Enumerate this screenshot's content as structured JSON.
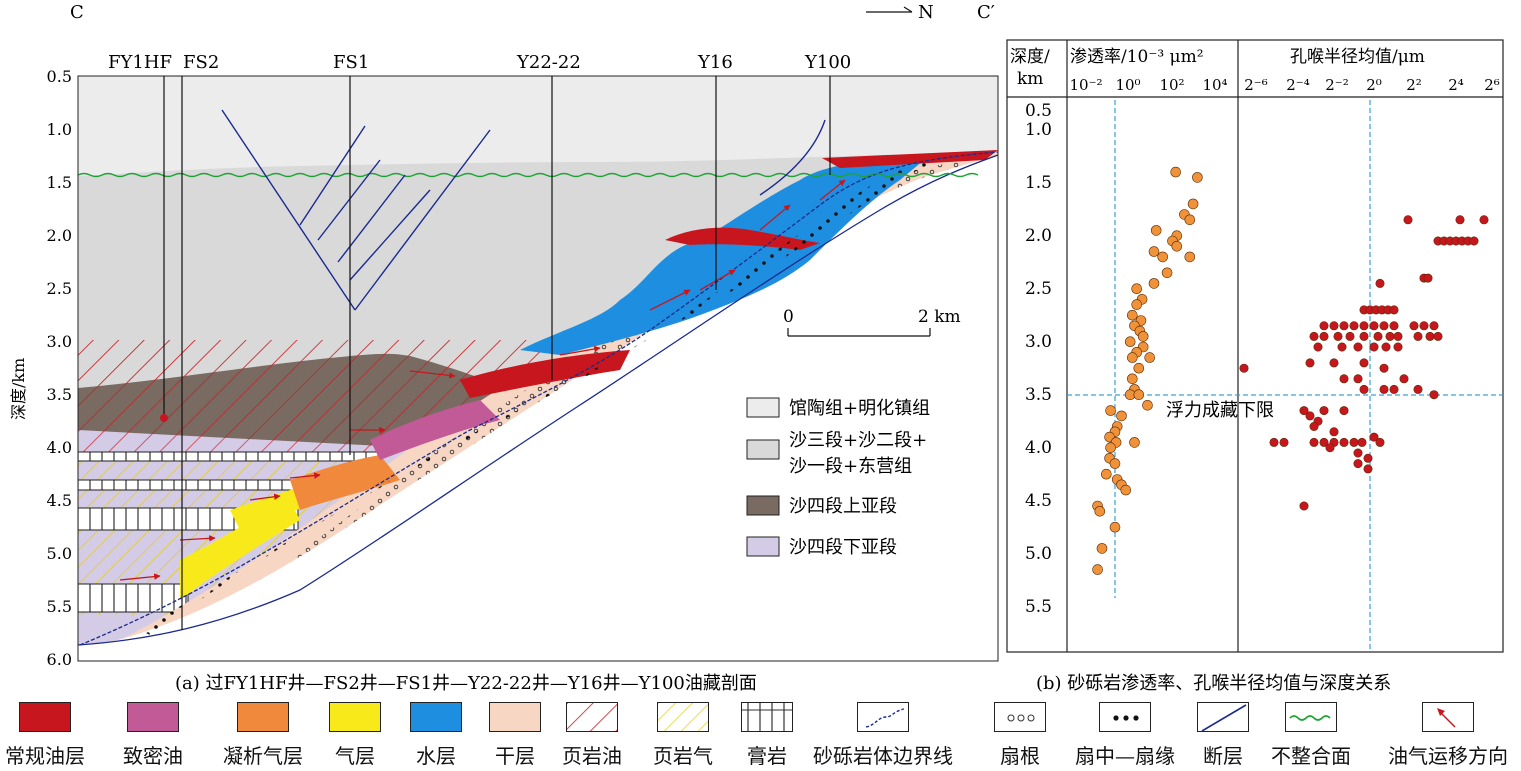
{
  "panel_a": {
    "corner_left": "C",
    "corner_right": "C′",
    "north": "N",
    "wells": [
      "FY1HF",
      "FS2",
      "FS1",
      "Y22-22",
      "Y16",
      "Y100"
    ],
    "ylabel": "深度/km",
    "yticks": [
      "0.5",
      "1.0",
      "1.5",
      "2.0",
      "2.5",
      "3.0",
      "3.5",
      "4.0",
      "4.5",
      "5.0",
      "5.5",
      "6.0"
    ],
    "scale_start": "0",
    "scale_end": "2 km",
    "legend": [
      {
        "label": "馆陶组+明化镇组",
        "color": "#ececec"
      },
      {
        "label_line1": "沙三段+沙二段+",
        "label_line2": "沙一段+东营组",
        "color": "#d9d9d9"
      },
      {
        "label": "沙四段上亚段",
        "color": "#7a6b62"
      },
      {
        "label": "沙四段下亚段",
        "color": "#d4cbe6"
      }
    ],
    "caption": "(a) 过FY1HF井—FS2井—FS1井—Y22-22井—Y16井—Y100油藏剖面"
  },
  "panel_b": {
    "depth_header_line1": "深度/",
    "depth_header_line2": "km",
    "perm_header": "渗透率/10⁻³ μm²",
    "pore_header": "孔喉半径均值/μm",
    "perm_ticks": [
      "10⁻²",
      "10⁰",
      "10²",
      "10⁴"
    ],
    "pore_ticks": [
      "2⁻⁶",
      "2⁻⁴",
      "2⁻²",
      "2⁰",
      "2²",
      "2⁴",
      "2⁶"
    ],
    "depth_ticks": [
      "0.5",
      "1.0",
      "1.5",
      "2.0",
      "2.5",
      "3.0",
      "3.5",
      "4.0",
      "4.5",
      "5.0",
      "5.5"
    ],
    "buoyancy_label": "浮力成藏下限",
    "caption": "(b) 砂砾岩渗透率、孔喉半径均值与深度关系"
  },
  "chart_data": {
    "type": "scatter",
    "ylabel": "深度/km",
    "ylim": [
      0.4,
      6.0
    ],
    "buoyancy_depth_km": 3.5,
    "series": [
      {
        "name": "渗透率/10⁻³ μm²",
        "color": "#f0923a",
        "x_scale": "log10",
        "xlim_log10": [
          -3,
          5
        ],
        "points": [
          [
            2.2,
            1.35
          ],
          [
            3.2,
            1.4
          ],
          [
            3.0,
            1.65
          ],
          [
            2.6,
            1.75
          ],
          [
            2.85,
            1.8
          ],
          [
            1.3,
            1.9
          ],
          [
            2.25,
            1.95
          ],
          [
            2.05,
            2.0
          ],
          [
            2.25,
            2.05
          ],
          [
            1.2,
            2.1
          ],
          [
            1.6,
            2.15
          ],
          [
            2.85,
            2.15
          ],
          [
            1.8,
            2.3
          ],
          [
            1.2,
            2.4
          ],
          [
            0.4,
            2.45
          ],
          [
            0.65,
            2.55
          ],
          [
            0.4,
            2.6
          ],
          [
            0.2,
            2.7
          ],
          [
            0.6,
            2.75
          ],
          [
            0.3,
            2.8
          ],
          [
            0.55,
            2.85
          ],
          [
            0.7,
            2.9
          ],
          [
            0.1,
            2.95
          ],
          [
            0.7,
            3.0
          ],
          [
            0.4,
            3.05
          ],
          [
            0.2,
            3.1
          ],
          [
            1.0,
            3.1
          ],
          [
            0.5,
            3.2
          ],
          [
            0.2,
            3.3
          ],
          [
            0.3,
            3.4
          ],
          [
            0.1,
            3.45
          ],
          [
            0.5,
            3.45
          ],
          [
            0.9,
            3.55
          ],
          [
            -0.8,
            3.6
          ],
          [
            -0.3,
            3.65
          ],
          [
            -0.5,
            3.75
          ],
          [
            -0.6,
            3.8
          ],
          [
            -0.85,
            3.85
          ],
          [
            -0.55,
            3.9
          ],
          [
            0.3,
            3.9
          ],
          [
            -0.8,
            3.95
          ],
          [
            -0.85,
            4.05
          ],
          [
            -0.6,
            4.1
          ],
          [
            -1.0,
            4.2
          ],
          [
            -0.5,
            4.25
          ],
          [
            -0.3,
            4.3
          ],
          [
            -0.1,
            4.35
          ],
          [
            -1.4,
            4.5
          ],
          [
            -1.3,
            4.55
          ],
          [
            -0.6,
            4.7
          ],
          [
            -1.2,
            4.9
          ],
          [
            -1.4,
            5.1
          ]
        ]
      },
      {
        "name": "孔喉半径均值/μm",
        "color": "#c8161e",
        "x_scale": "log2",
        "xlim_log2": [
          -7,
          7
        ],
        "points": [
          [
            1.7,
            1.8
          ],
          [
            4.3,
            1.8
          ],
          [
            5.5,
            1.8
          ],
          [
            3.2,
            2.0
          ],
          [
            3.5,
            2.0
          ],
          [
            3.8,
            2.0
          ],
          [
            4.1,
            2.0
          ],
          [
            4.4,
            2.0
          ],
          [
            4.7,
            2.0
          ],
          [
            5.0,
            2.0
          ],
          [
            2.5,
            2.35
          ],
          [
            2.7,
            2.35
          ],
          [
            0.3,
            2.4
          ],
          [
            -0.5,
            2.65
          ],
          [
            -0.2,
            2.65
          ],
          [
            0.1,
            2.65
          ],
          [
            0.4,
            2.65
          ],
          [
            0.7,
            2.65
          ],
          [
            1.0,
            2.65
          ],
          [
            -2.5,
            2.8
          ],
          [
            -2.0,
            2.8
          ],
          [
            -1.5,
            2.8
          ],
          [
            -1.0,
            2.8
          ],
          [
            -0.5,
            2.8
          ],
          [
            0.0,
            2.8
          ],
          [
            0.5,
            2.8
          ],
          [
            1.0,
            2.8
          ],
          [
            2.0,
            2.8
          ],
          [
            2.5,
            2.8
          ],
          [
            3.0,
            2.8
          ],
          [
            -3.0,
            2.9
          ],
          [
            -2.5,
            2.9
          ],
          [
            -1.8,
            2.9
          ],
          [
            -1.2,
            2.9
          ],
          [
            -0.5,
            2.9
          ],
          [
            0.2,
            2.9
          ],
          [
            0.8,
            2.9
          ],
          [
            1.2,
            2.9
          ],
          [
            2.2,
            2.9
          ],
          [
            2.8,
            2.9
          ],
          [
            3.2,
            2.9
          ],
          [
            -2.8,
            3.0
          ],
          [
            -1.6,
            3.0
          ],
          [
            -0.8,
            3.0
          ],
          [
            0.0,
            3.0
          ],
          [
            0.6,
            3.0
          ],
          [
            1.2,
            3.0
          ],
          [
            -3.2,
            3.15
          ],
          [
            -2.0,
            3.15
          ],
          [
            -0.5,
            3.15
          ],
          [
            0.5,
            3.2
          ],
          [
            -1.5,
            3.3
          ],
          [
            -0.8,
            3.3
          ],
          [
            1.5,
            3.3
          ],
          [
            -6.5,
            3.2
          ],
          [
            -0.5,
            3.4
          ],
          [
            0.5,
            3.4
          ],
          [
            1.0,
            3.4
          ],
          [
            2.2,
            3.4
          ],
          [
            3.0,
            3.45
          ],
          [
            -3.5,
            3.6
          ],
          [
            -2.5,
            3.6
          ],
          [
            -1.5,
            3.6
          ],
          [
            -3.2,
            3.65
          ],
          [
            -2.8,
            3.7
          ],
          [
            -3.0,
            3.75
          ],
          [
            -2.0,
            3.8
          ],
          [
            -5.0,
            3.9
          ],
          [
            -4.5,
            3.9
          ],
          [
            -3.0,
            3.9
          ],
          [
            -2.5,
            3.9
          ],
          [
            -2.0,
            3.9
          ],
          [
            -1.5,
            3.9
          ],
          [
            -1.0,
            3.9
          ],
          [
            -0.6,
            3.9
          ],
          [
            0.0,
            3.85
          ],
          [
            0.3,
            3.9
          ],
          [
            -2.2,
            3.95
          ],
          [
            -0.8,
            4.0
          ],
          [
            -0.3,
            4.05
          ],
          [
            -0.8,
            4.1
          ],
          [
            -0.3,
            4.15
          ],
          [
            -3.5,
            4.5
          ]
        ]
      }
    ]
  },
  "legend": [
    {
      "label": "常规油层",
      "icon": "solid-red-swatch",
      "color": "#c8161e"
    },
    {
      "label": "致密油",
      "icon": "solid-magenta-swatch",
      "color": "#c25a98"
    },
    {
      "label": "凝析气层",
      "icon": "solid-orange-swatch",
      "color": "#f0893c"
    },
    {
      "label": "气层",
      "icon": "solid-yellow-swatch",
      "color": "#f8ea1a"
    },
    {
      "label": "水层",
      "icon": "solid-blue-swatch",
      "color": "#1e8fe0"
    },
    {
      "label": "干层",
      "icon": "solid-peach-swatch",
      "color": "#f7d6c4"
    },
    {
      "label": "页岩油",
      "icon": "red-hatch-swatch",
      "color": "#c8161e"
    },
    {
      "label": "页岩气",
      "icon": "yellow-hatch-swatch",
      "color": "#e6d000"
    },
    {
      "label": "膏岩",
      "icon": "gypsum-swatch",
      "color": "#333333"
    },
    {
      "label": "砂砾岩体边界线",
      "icon": "boundary-line-swatch",
      "color": "#1a2a8f"
    },
    {
      "label": "扇根",
      "icon": "circles-swatch",
      "color": "#333333"
    },
    {
      "label": "扇中—扇缘",
      "icon": "dots-swatch",
      "color": "#111111"
    },
    {
      "label": "断层",
      "icon": "fault-swatch",
      "color": "#1a2a8f"
    },
    {
      "label": "不整合面",
      "icon": "unconformity-swatch",
      "color": "#1ea337"
    },
    {
      "label": "油气运移方向",
      "icon": "arrow-swatch",
      "color": "#c8161e"
    }
  ]
}
